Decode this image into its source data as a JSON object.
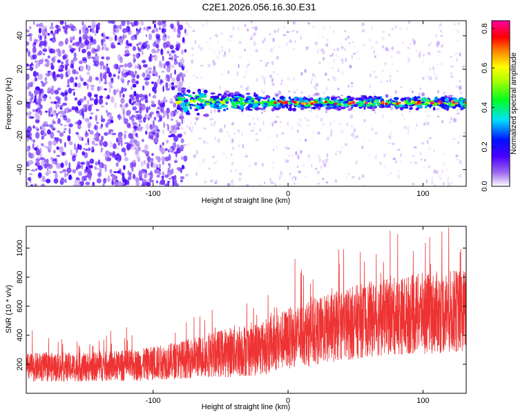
{
  "title": "C2E1.2026.056.16.30.E31",
  "chart_data": [
    {
      "type": "heatmap",
      "xlabel": "Height of straight line (km)",
      "ylabel": "Frequency (Hz)",
      "xlim": [
        -194,
        132
      ],
      "ylim": [
        -50,
        49
      ],
      "xticks": [
        -100,
        0,
        100
      ],
      "xtick_labels": [
        "-100",
        "0",
        "100"
      ],
      "yticks": [
        -40,
        -20,
        0,
        20,
        40
      ],
      "ytick_labels": [
        "-40",
        "-20",
        "0",
        "20",
        "40"
      ],
      "colorbar": {
        "label": "Normalized spectral amplitude",
        "range": [
          0,
          0.84
        ],
        "ticks": [
          0,
          0.2,
          0.4,
          0.6,
          0.8
        ],
        "tick_labels": [
          "0.0",
          "0.2",
          "0.4",
          "0.6",
          "0.8"
        ]
      },
      "signal_band": {
        "x_start": -82,
        "x_end": 132,
        "center_freq": 0,
        "peak_amplitude": 0.84,
        "band_amplitude": 0.45
      },
      "noise": {
        "dense_region_x_end": -80,
        "dense_amplitude": 0.1,
        "sparse_amplitude": 0.03
      }
    },
    {
      "type": "line",
      "xlabel": "Height of straight line (km)",
      "ylabel": "SNR (10 * v/v)",
      "xlim": [
        -194,
        132
      ],
      "ylim": [
        0,
        1150
      ],
      "xticks": [
        -100,
        0,
        100
      ],
      "xtick_labels": [
        "-100",
        "0",
        "100"
      ],
      "yticks": [
        200,
        400,
        600,
        800,
        1000
      ],
      "ytick_labels": [
        "200",
        "400",
        "600",
        "800",
        "1000"
      ],
      "color": "#ee3333",
      "series": [
        {
          "name": "SNR",
          "trend_x": [
            -194,
            -150,
            -110,
            -80,
            -60,
            -40,
            -20,
            0,
            20,
            40,
            60,
            80,
            100,
            132
          ],
          "trend_mean": [
            180,
            180,
            195,
            230,
            260,
            290,
            310,
            380,
            420,
            470,
            510,
            530,
            550,
            570
          ],
          "trend_spread": [
            100,
            100,
            110,
            130,
            150,
            180,
            190,
            210,
            230,
            250,
            260,
            270,
            280,
            290
          ]
        }
      ]
    }
  ]
}
